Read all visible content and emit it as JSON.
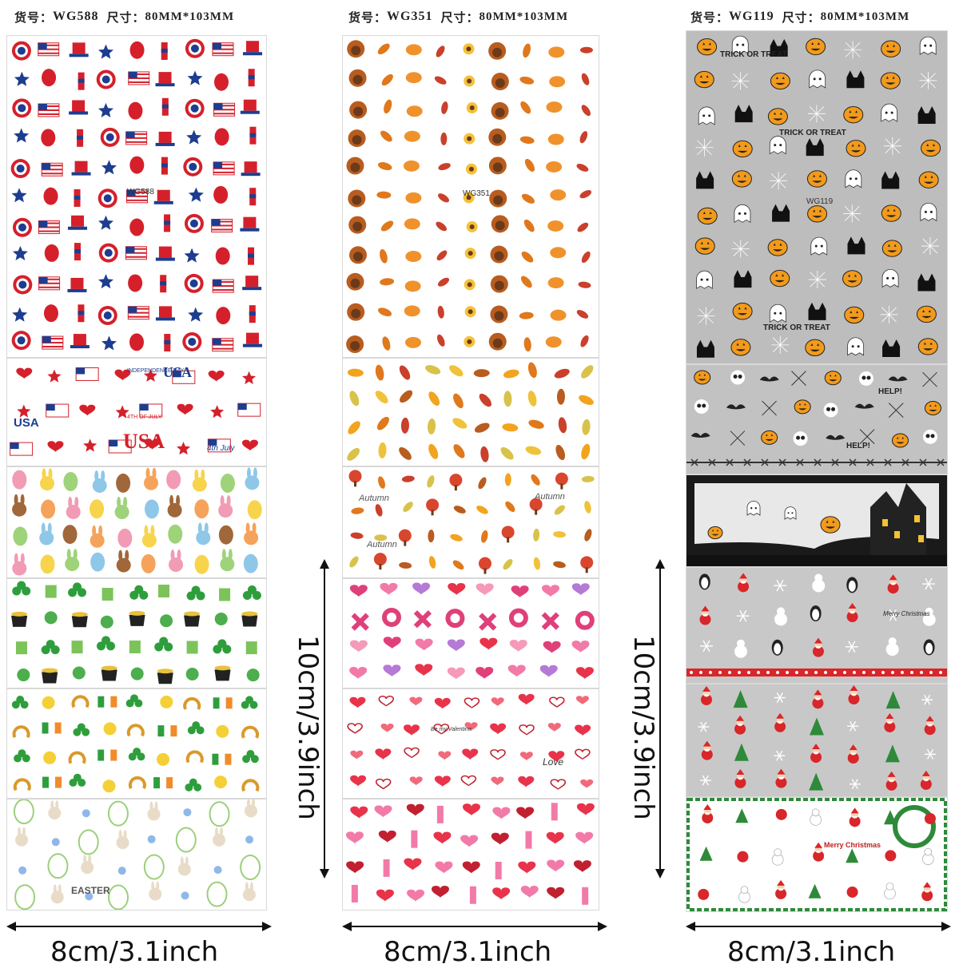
{
  "columns": [
    {
      "code": "WG588",
      "size_text": "80MM*103MM",
      "prefix": "货号：",
      "size_prefix": "尺寸：",
      "sheet_code": "WG588",
      "sticker_texts": [
        "4TH",
        "USA",
        "USA",
        "USA",
        "4th July",
        "INDEPENDENCE DAY",
        "4TH OF JULY",
        "EASTER"
      ]
    },
    {
      "code": "WG351",
      "size_text": "80MM*103MM",
      "prefix": "货号：",
      "size_prefix": "尺寸：",
      "sheet_code": "WG351",
      "sticker_texts": [
        "Autumn",
        "Autumn",
        "Autumn",
        "XO",
        "Love",
        "Be my Valentine"
      ]
    },
    {
      "code": "WG119",
      "size_text": "80MM*103MM",
      "prefix": "货号：",
      "size_prefix": "尺寸：",
      "sheet_code": "WG119",
      "sticker_texts": [
        "TRICK OR TREAT",
        "TRICK OR TREAT",
        "TRICK OR TREAT",
        "HELP!",
        "HELP!",
        "Merry Christmas",
        "Merry Christmas"
      ]
    }
  ],
  "dimensions": {
    "width_label": "8cm/3.1inch",
    "height_label": "10cm/3.9inch"
  },
  "colors": {
    "patriotic_red": "#d5202b",
    "patriotic_blue": "#1d3d8f",
    "autumn_orange": "#e0781c",
    "valentine_pink": "#e0407a",
    "halloween_gray": "#bdbdbd",
    "halloween_orange": "#f29a1b",
    "shamrock_green": "#2e9e3c"
  }
}
